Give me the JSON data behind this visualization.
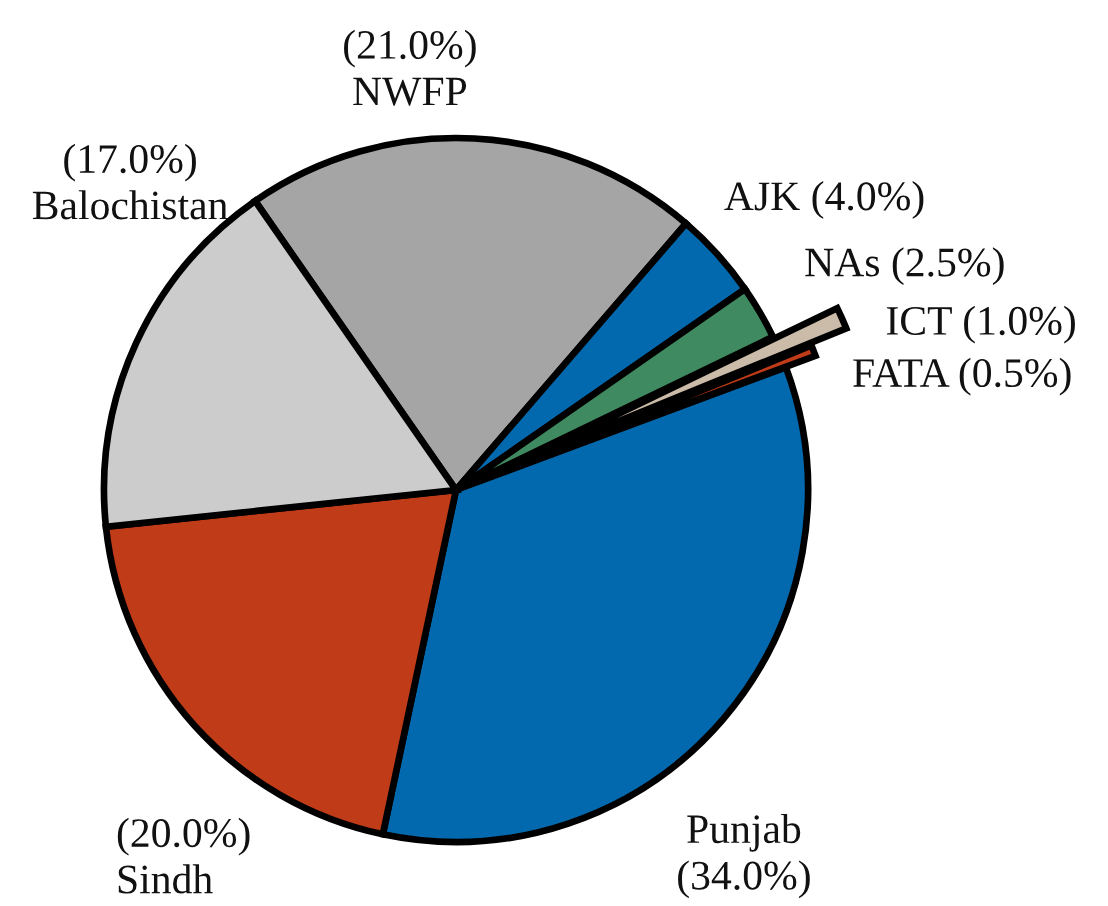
{
  "chart_data": {
    "type": "pie",
    "categories": [
      "NWFP",
      "AJK",
      "NAs",
      "ICT",
      "FATA",
      "Punjab",
      "Sindh",
      "Balochistan"
    ],
    "values": [
      21.0,
      4.0,
      2.5,
      1.0,
      0.5,
      34.0,
      20.0,
      17.0
    ],
    "colors": [
      "#a5a5a5",
      "#0369ae",
      "#3f8a60",
      "#cbbba9",
      "#c03b17",
      "#0369ae",
      "#c03b17",
      "#cccccc"
    ],
    "value_labels": [
      "(21.0%)",
      "(4.0%)",
      "(2.5%)",
      "(1.0%)",
      "(0.5%)",
      "(34.0%)",
      "(20.0%)",
      "(17.0%)"
    ]
  }
}
